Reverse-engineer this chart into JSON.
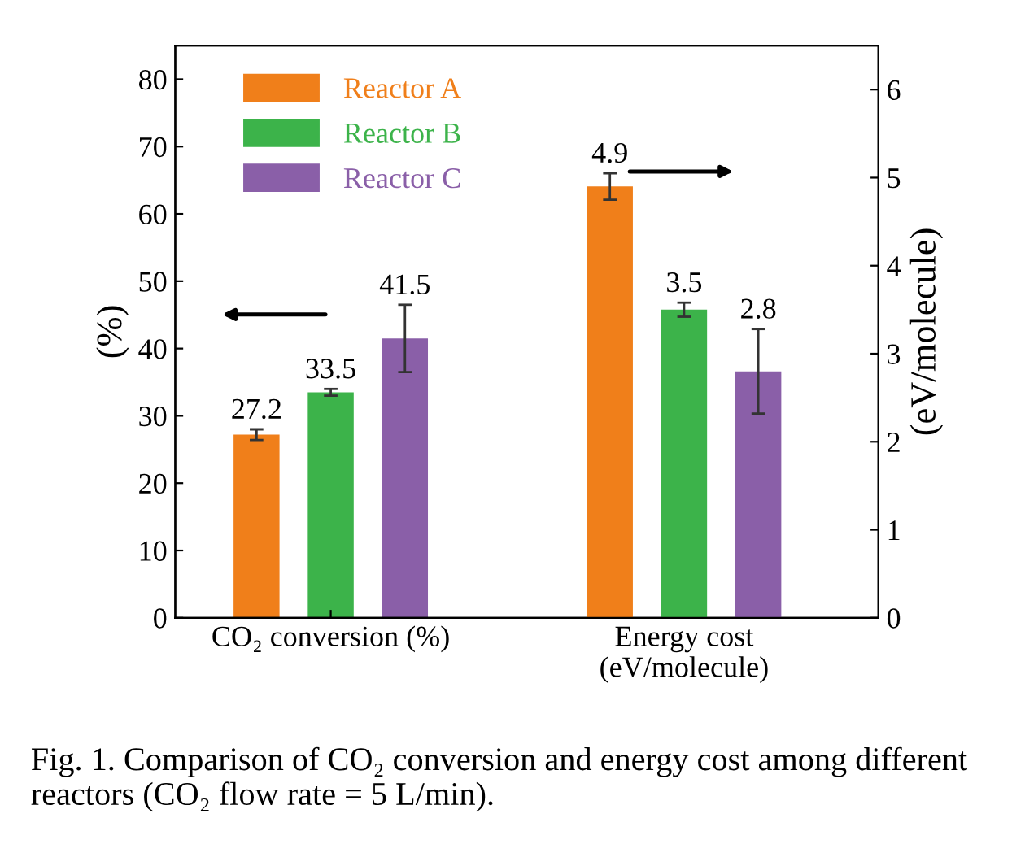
{
  "chart_data": {
    "type": "bar",
    "categories": [
      "CO₂ conversion (%)",
      "Energy cost\n(eV/molecule)"
    ],
    "ylabel": "(%)",
    "y2label": "(eV/molecule)",
    "ylim": [
      0,
      85
    ],
    "yticks": [
      0,
      10,
      20,
      30,
      40,
      50,
      60,
      70,
      80
    ],
    "y2lim": [
      0,
      6.5
    ],
    "y2ticks": [
      0,
      1,
      2,
      3,
      4,
      5,
      6
    ],
    "series": [
      {
        "name": "Reactor A",
        "color": "#f07f1a",
        "values": [
          27.2,
          null
        ],
        "errors": [
          0.8,
          null
        ]
      },
      {
        "name": "Reactor B",
        "color": "#3cb34a",
        "values": [
          33.5,
          null
        ],
        "errors": [
          0.5,
          null
        ]
      },
      {
        "name": "Reactor C",
        "color": "#8a5fa8",
        "values": [
          41.5,
          null
        ],
        "errors": [
          5.0,
          null
        ]
      },
      {
        "color": "#f07f1a",
        "axis": "y2",
        "values": [
          null,
          4.9
        ],
        "errors": [
          null,
          0.15
        ]
      },
      {
        "color": "#3cb34a",
        "axis": "y2",
        "values": [
          null,
          3.5
        ],
        "errors": [
          null,
          0.08
        ]
      },
      {
        "color": "#8a5fa8",
        "axis": "y2",
        "values": [
          null,
          2.8
        ],
        "errors": [
          null,
          0.48
        ]
      }
    ],
    "data_labels": true,
    "legend": "top left",
    "grid": false,
    "annotations": [
      "Fig. 1. Comparison of CO₂ conversion and energy cost among different reactors (CO₂ flow rate = 5 L/min)."
    ]
  }
}
